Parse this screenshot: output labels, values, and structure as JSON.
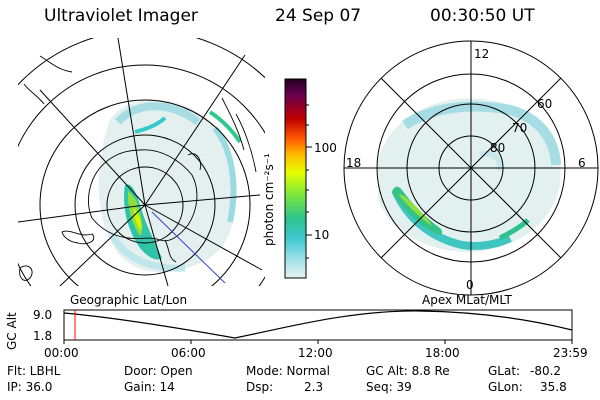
{
  "header": {
    "title": "Ultraviolet Imager",
    "date": "24 Sep 07",
    "time": "00:30:50 UT"
  },
  "left_panel": {
    "caption": "Geographic Lat/Lon"
  },
  "right_panel": {
    "caption": "Apex MLat/MLT",
    "mlt_labels": {
      "top": "12",
      "left": "18",
      "right": "6",
      "bottom": "0"
    },
    "lat_labels": [
      "60",
      "70",
      "80"
    ]
  },
  "colorbar": {
    "label": "photon cm⁻²s⁻¹",
    "scale": "log",
    "ticks": [
      "100",
      "10"
    ],
    "colors": [
      "#220022",
      "#6a0050",
      "#c00000",
      "#ff5a00",
      "#ffbb00",
      "#e6ff00",
      "#7de83a",
      "#2bc48a",
      "#3ec8d0",
      "#9ae0e8",
      "#e6f2f2"
    ]
  },
  "alt_plot": {
    "ylabel": "GC Alt",
    "ymax": "9.0",
    "ymin": "1.8",
    "xticks": [
      "00:00",
      "06:00",
      "12:00",
      "18:00",
      "23:59"
    ],
    "marker_time_hours": 0.51,
    "marker_color": "#ff0000"
  },
  "status": {
    "flt": "Flt: LBHL",
    "ip": "IP: 36.0",
    "door": "Door: Open",
    "gain": "Gain: 14",
    "mode": "Mode: Normal",
    "dsp_label": "Dsp:",
    "dsp_value": "2.3",
    "gcalt": "GC Alt: 8.8 Re",
    "seq": "Seq: 39",
    "glat_label": "GLat:",
    "glat_value": "-80.2",
    "glon_label": "GLon:",
    "glon_value": "35.8"
  }
}
